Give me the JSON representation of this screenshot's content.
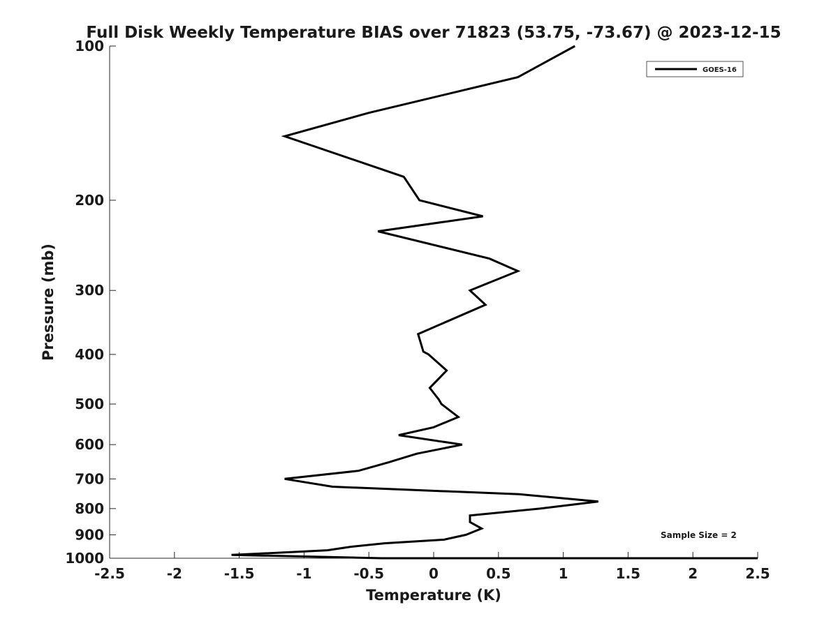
{
  "chart_data": {
    "type": "line",
    "title": "Full Disk Weekly Temperature BIAS over 71823 (53.75, -73.67) @ 2023-12-15",
    "xlabel": "Temperature (K)",
    "ylabel": "Pressure (mb)",
    "xlim": [
      -2.5,
      2.5
    ],
    "ylim": [
      100,
      1000
    ],
    "y_scale": "log",
    "y_reversed": true,
    "x_ticks": [
      "-2.5",
      "-2",
      "-1.5",
      "-1",
      "-0.5",
      "0",
      "0.5",
      "1",
      "1.5",
      "2",
      "2.5"
    ],
    "y_ticks": [
      "100",
      "200",
      "300",
      "400",
      "500",
      "600",
      "700",
      "800",
      "900",
      "1000"
    ],
    "grid": false,
    "legend_position": "top-right",
    "annotation": "Sample Size = 2",
    "line_color": "#000000",
    "series": [
      {
        "name": "GOES-16",
        "points": [
          {
            "x": 1.09,
            "y": 100
          },
          {
            "x": 0.65,
            "y": 115
          },
          {
            "x": -0.5,
            "y": 135
          },
          {
            "x": -1.15,
            "y": 150
          },
          {
            "x": -0.23,
            "y": 180
          },
          {
            "x": -0.11,
            "y": 200
          },
          {
            "x": 0.38,
            "y": 215
          },
          {
            "x": -0.43,
            "y": 230
          },
          {
            "x": 0.43,
            "y": 260
          },
          {
            "x": 0.65,
            "y": 275
          },
          {
            "x": 0.28,
            "y": 300
          },
          {
            "x": 0.4,
            "y": 320
          },
          {
            "x": -0.12,
            "y": 365
          },
          {
            "x": -0.08,
            "y": 395
          },
          {
            "x": -0.04,
            "y": 400
          },
          {
            "x": 0.1,
            "y": 430
          },
          {
            "x": -0.03,
            "y": 465
          },
          {
            "x": 0.04,
            "y": 490
          },
          {
            "x": 0.06,
            "y": 500
          },
          {
            "x": 0.19,
            "y": 530
          },
          {
            "x": 0.0,
            "y": 555
          },
          {
            "x": -0.27,
            "y": 575
          },
          {
            "x": 0.22,
            "y": 600
          },
          {
            "x": -0.13,
            "y": 625
          },
          {
            "x": -0.35,
            "y": 650
          },
          {
            "x": -0.58,
            "y": 675
          },
          {
            "x": -1.15,
            "y": 700
          },
          {
            "x": -0.78,
            "y": 725
          },
          {
            "x": 0.66,
            "y": 750
          },
          {
            "x": 1.27,
            "y": 775
          },
          {
            "x": 0.82,
            "y": 800
          },
          {
            "x": 0.28,
            "y": 825
          },
          {
            "x": 0.28,
            "y": 850
          },
          {
            "x": 0.37,
            "y": 875
          },
          {
            "x": 0.25,
            "y": 900
          },
          {
            "x": 0.08,
            "y": 920
          },
          {
            "x": -0.38,
            "y": 935
          },
          {
            "x": -0.64,
            "y": 950
          },
          {
            "x": -0.82,
            "y": 965
          },
          {
            "x": -1.17,
            "y": 975
          },
          {
            "x": -1.56,
            "y": 985
          },
          {
            "x": -0.4,
            "y": 1000
          },
          {
            "x": 2.5,
            "y": 1000
          }
        ]
      }
    ]
  }
}
